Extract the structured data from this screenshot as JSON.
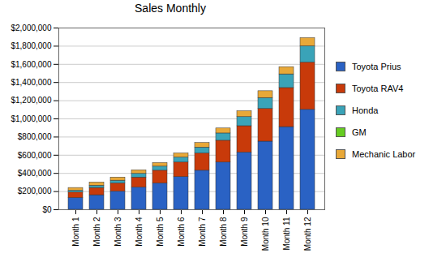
{
  "chart_data": {
    "type": "bar",
    "title": "Sales Monthly",
    "stacked": true,
    "grid": true,
    "legend": "right",
    "categories": [
      "Month 1",
      "Month 2",
      "Month 3",
      "Month 4",
      "Month 5",
      "Month 6",
      "Month 7",
      "Month 8",
      "Month 9",
      "Month 10",
      "Month 11",
      "Month 12"
    ],
    "series": [
      {
        "name": "Toyota Prius",
        "color": "#2a62c4",
        "values": [
          130000,
          160000,
          200000,
          245000,
          290000,
          360000,
          430000,
          520000,
          630000,
          750000,
          910000,
          1100000
        ]
      },
      {
        "name": "Toyota RAV4",
        "color": "#c83a0a",
        "values": [
          60000,
          80000,
          90000,
          110000,
          140000,
          160000,
          190000,
          240000,
          290000,
          360000,
          430000,
          520000
        ]
      },
      {
        "name": "Honda",
        "color": "#3aa3b8",
        "values": [
          20000,
          25000,
          30000,
          40000,
          45000,
          55000,
          65000,
          80000,
          100000,
          120000,
          150000,
          180000
        ]
      },
      {
        "name": "GM",
        "color": "#66cc22",
        "values": [
          0,
          0,
          0,
          0,
          0,
          0,
          0,
          0,
          0,
          0,
          0,
          0
        ]
      },
      {
        "name": "Mechanic Labor",
        "color": "#e8a838",
        "values": [
          30000,
          35000,
          35000,
          40000,
          40000,
          45000,
          50000,
          55000,
          65000,
          75000,
          80000,
          90000
        ]
      }
    ],
    "ylim": [
      0,
      2000000
    ],
    "yticks": [
      {
        "value": 0,
        "label": "$0"
      },
      {
        "value": 200000,
        "label": "$200,000"
      },
      {
        "value": 400000,
        "label": "$400,000"
      },
      {
        "value": 600000,
        "label": "$600,000"
      },
      {
        "value": 800000,
        "label": "$800,000"
      },
      {
        "value": 1000000,
        "label": "$1,000,000"
      },
      {
        "value": 1200000,
        "label": "$1,200,000"
      },
      {
        "value": 1400000,
        "label": "$1,400,000"
      },
      {
        "value": 1600000,
        "label": "$1,600,000"
      },
      {
        "value": 1800000,
        "label": "$1,800,000"
      },
      {
        "value": 2000000,
        "label": "$2,000,000"
      }
    ]
  }
}
